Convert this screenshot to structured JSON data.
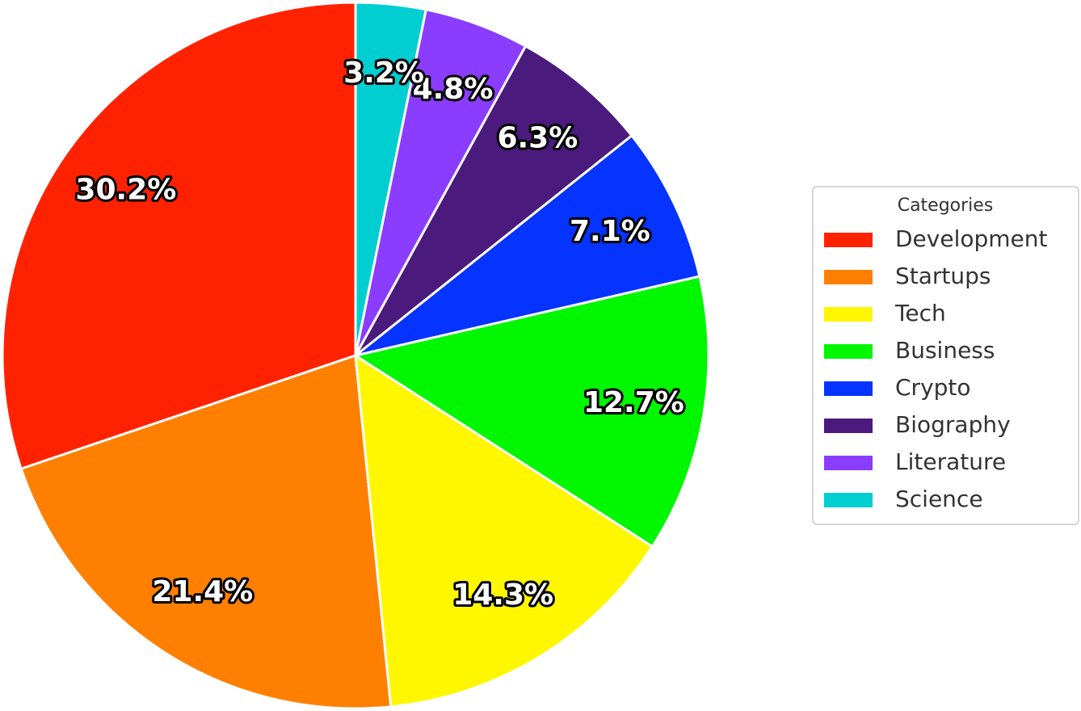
{
  "chart_data": {
    "type": "pie",
    "categories": [
      "Development",
      "Startups",
      "Tech",
      "Business",
      "Crypto",
      "Biography",
      "Literature",
      "Science"
    ],
    "values": [
      30.2,
      21.4,
      14.3,
      12.7,
      7.1,
      6.3,
      4.8,
      3.2
    ],
    "value_labels": [
      "30.2%",
      "21.4%",
      "14.3%",
      "12.7%",
      "7.1%",
      "6.3%",
      "4.8%",
      "3.2%"
    ],
    "colors": [
      "#ff2200",
      "#ff8000",
      "#fff700",
      "#00f700",
      "#0533ff",
      "#4b1a7d",
      "#8a3cff",
      "#00ced1"
    ],
    "legend_title": "Categories",
    "legend": "right"
  }
}
